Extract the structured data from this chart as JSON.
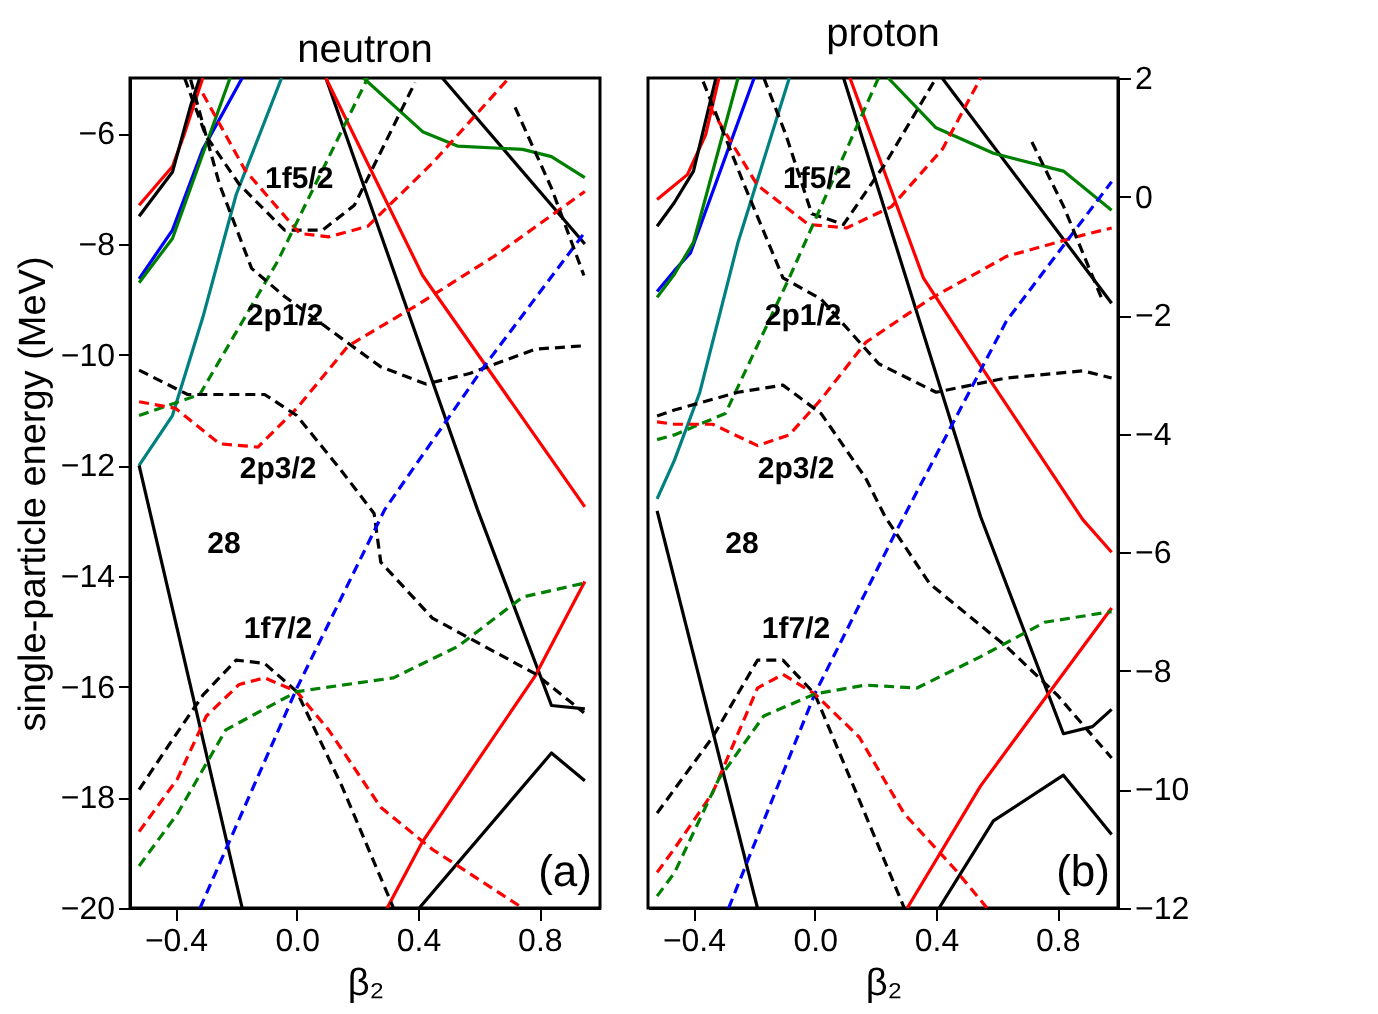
{
  "chart_data": [
    {
      "type": "line",
      "title": "neutron",
      "xlabel": "β₂",
      "ylabel": "single-particle energy (MeV)",
      "xlim": [
        -0.55,
        1.0
      ],
      "ylim": [
        -20,
        -5
      ],
      "xticks": [
        -0.4,
        {
          "value": 0,
          "label": "0.0"
        },
        0.4,
        0.8
      ],
      "yticks": [
        -20,
        -18,
        -16,
        -14,
        -12,
        -10,
        -8,
        -6
      ],
      "grid": false,
      "legend": false,
      "annotations": [
        "1f5/2",
        "2p1/2",
        "2p3/2",
        "1f7/2",
        "28",
        "(a)"
      ],
      "series": [
        {
          "color": "#ff0000",
          "line_style": "solid",
          "x": [
            -0.52,
            -0.41,
            -0.37,
            -0.31
          ],
          "values": [
            -7.3,
            -6.6,
            -6.0,
            -5.0
          ]
        },
        {
          "color": "#000000",
          "line_style": "solid",
          "x": [
            -0.52,
            -0.41,
            -0.35,
            -0.32
          ],
          "values": [
            -7.5,
            -6.7,
            -5.5,
            -5.0
          ]
        },
        {
          "color": "#0000ff",
          "line_style": "solid",
          "x": [
            -0.52,
            -0.41,
            -0.31,
            -0.18
          ],
          "values": [
            -8.63,
            -7.75,
            -6.29,
            -5.0
          ]
        },
        {
          "color": "#008000",
          "line_style": "solid",
          "x": [
            -0.52,
            -0.41,
            -0.22
          ],
          "values": [
            -8.7,
            -7.9,
            -5.0
          ]
        },
        {
          "color": "#008080",
          "line_style": "solid",
          "x": [
            -0.52,
            -0.41,
            -0.31,
            -0.2,
            -0.05
          ],
          "values": [
            -12.0,
            -11.1,
            -9.33,
            -7.11,
            -5.0
          ]
        },
        {
          "color": "#000000",
          "line_style": "solid",
          "x": [
            0.096,
            0.596,
            0.84,
            0.95
          ],
          "values": [
            -5.0,
            -12.8,
            -16.34,
            -16.4
          ]
        },
        {
          "color": "#000000",
          "line_style": "solid",
          "x": [
            0.48,
            0.95
          ],
          "values": [
            -5.0,
            -8.0
          ]
        },
        {
          "color": "#ff0000",
          "line_style": "solid",
          "x": [
            0.096,
            0.415,
            0.95
          ],
          "values": [
            -5.0,
            -8.57,
            -12.75
          ]
        },
        {
          "color": "#008000",
          "line_style": "solid",
          "x": [
            0.22,
            0.415,
            0.53,
            0.745,
            0.84,
            0.95
          ],
          "values": [
            -5.0,
            -5.97,
            -6.23,
            -6.29,
            -6.42,
            -6.8
          ]
        },
        {
          "color": "#000000",
          "line_style": "solid",
          "x": [
            -0.52,
            -0.18
          ],
          "values": [
            -12.0,
            -20.0
          ]
        },
        {
          "color": "#ff0000",
          "line_style": "solid",
          "x": [
            0.298,
            0.415,
            0.787,
            0.95
          ],
          "values": [
            -20.0,
            -18.8,
            -15.8,
            -14.1
          ]
        },
        {
          "color": "#000000",
          "line_style": "solid",
          "x": [
            0.404,
            0.84,
            0.95
          ],
          "values": [
            -20.0,
            -17.2,
            -17.7
          ]
        },
        {
          "color": "#000000",
          "line_style": "dashed",
          "x": [
            -0.37,
            -0.3,
            -0.19,
            -0.04,
            0.085,
            0.19,
            0.39
          ],
          "values": [
            -5.0,
            -6.04,
            -6.92,
            -7.75,
            -7.75,
            -7.3,
            -5.08
          ]
        },
        {
          "color": "#ff0000",
          "line_style": "dashed",
          "x": [
            -0.31,
            -0.17,
            0.01,
            0.106,
            0.234,
            0.447,
            0.7
          ],
          "values": [
            -5.28,
            -6.67,
            -7.81,
            -7.87,
            -7.68,
            -6.54,
            -5.0
          ]
        },
        {
          "color": "#008000",
          "line_style": "dashed",
          "x": [
            -0.52,
            -0.32,
            -0.064,
            0.234
          ],
          "values": [
            -11.1,
            -10.72,
            -8.32,
            -5.0
          ]
        },
        {
          "color": "#000000",
          "line_style": "dashed",
          "x": [
            -0.35,
            -0.255,
            -0.149,
            -0.04,
            0.149,
            0.277,
            0.426,
            0.57,
            0.787,
            0.947
          ],
          "values": [
            -5.03,
            -6.92,
            -8.44,
            -8.95,
            -9.71,
            -10.22,
            -10.53,
            -10.34,
            -9.9,
            -9.84
          ]
        },
        {
          "color": "#ff0000",
          "line_style": "dashed",
          "x": [
            -0.52,
            -0.4,
            -0.255,
            -0.128,
            0.0,
            0.17,
            0.404,
            0.66,
            0.95
          ],
          "values": [
            -10.85,
            -10.97,
            -11.61,
            -11.67,
            -10.97,
            -9.84,
            -9.08,
            -8.19,
            -7.05
          ]
        },
        {
          "color": "#000000",
          "line_style": "dashed",
          "x": [
            -0.52,
            -0.36,
            -0.106,
            0.0,
            0.149,
            0.255,
            0.277,
            0.447,
            0.787,
            0.947
          ],
          "values": [
            -10.28,
            -10.72,
            -10.72,
            -11.1,
            -12.11,
            -12.87,
            -13.75,
            -14.76,
            -15.77,
            -16.47
          ]
        },
        {
          "color": "#0000ff",
          "line_style": "dashed",
          "x": [
            -0.319,
            0.0,
            0.29,
            0.617,
            0.947
          ],
          "values": [
            -20.0,
            -16.03,
            -12.8,
            -10.22,
            -7.81
          ]
        },
        {
          "color": "#000000",
          "line_style": "dashed",
          "x": [
            0.72,
            0.84,
            0.947
          ],
          "values": [
            -5.53,
            -6.99,
            -8.57
          ]
        },
        {
          "color": "#000000",
          "line_style": "dashed",
          "x": [
            -0.52,
            -0.404,
            -0.309,
            -0.2,
            -0.106,
            0.0,
            0.149,
            0.319
          ],
          "values": [
            -17.86,
            -16.91,
            -16.15,
            -15.52,
            -15.58,
            -16.09,
            -17.8,
            -20.0
          ]
        },
        {
          "color": "#ff0000",
          "line_style": "dashed",
          "x": [
            -0.52,
            -0.394,
            -0.298,
            -0.19,
            -0.106,
            0.0,
            0.106,
            0.277,
            0.447,
            0.745
          ],
          "values": [
            -18.62,
            -17.67,
            -16.53,
            -15.96,
            -15.84,
            -16.09,
            -16.79,
            -18.18,
            -18.94,
            -20.0
          ]
        },
        {
          "color": "#008000",
          "line_style": "dashed",
          "x": [
            -0.52,
            -0.394,
            -0.234,
            0.0,
            0.319,
            0.532,
            0.745,
            0.947
          ],
          "values": [
            -19.24,
            -18.3,
            -16.78,
            -16.09,
            -15.84,
            -15.27,
            -14.38,
            -14.13
          ]
        }
      ]
    },
    {
      "type": "line",
      "title": "proton",
      "xlabel": "β₂",
      "xlim": [
        -0.55,
        1.0
      ],
      "ylim": [
        -12,
        2
      ],
      "xticks": [
        -0.4,
        {
          "value": 0,
          "label": "0.0"
        },
        0.4,
        0.8
      ],
      "yticks": [
        -12,
        -10,
        -8,
        -6,
        -4,
        -2,
        0,
        2
      ],
      "grid": false,
      "legend": false,
      "annotations": [
        "1f5/2",
        "2p1/2",
        "2p3/2",
        "1f7/2",
        "28",
        "(b)"
      ],
      "series": [
        {
          "color": "#ff0000",
          "line_style": "solid",
          "x": [
            -0.52,
            -0.42,
            -0.36,
            -0.316
          ],
          "values": [
            -0.05,
            0.37,
            1.04,
            2.0
          ]
        },
        {
          "color": "#000000",
          "line_style": "solid",
          "x": [
            -0.52,
            -0.463,
            -0.4,
            -0.326
          ],
          "values": [
            -0.5,
            -0.1,
            0.43,
            2.0
          ]
        },
        {
          "color": "#0000ff",
          "line_style": "solid",
          "x": [
            -0.52,
            -0.463,
            -0.41,
            -0.2
          ],
          "values": [
            -1.6,
            -1.25,
            -0.95,
            2.0
          ]
        },
        {
          "color": "#008000",
          "line_style": "solid",
          "x": [
            -0.52,
            -0.463,
            -0.4,
            -0.253
          ],
          "values": [
            -1.7,
            -1.31,
            -0.77,
            2.0
          ]
        },
        {
          "color": "#008080",
          "line_style": "solid",
          "x": [
            -0.52,
            -0.463,
            -0.379,
            -0.253,
            -0.084
          ],
          "values": [
            -5.1,
            -4.45,
            -3.3,
            -0.77,
            2.0
          ]
        },
        {
          "color": "#000000",
          "line_style": "solid",
          "x": [
            0.095,
            0.547,
            0.82,
            0.916,
            0.979
          ],
          "values": [
            2.0,
            -5.4,
            -9.06,
            -8.94,
            -8.65
          ]
        },
        {
          "color": "#000000",
          "line_style": "solid",
          "x": [
            0.42,
            0.979
          ],
          "values": [
            2.0,
            -1.8
          ]
        },
        {
          "color": "#ff0000",
          "line_style": "solid",
          "x": [
            0.116,
            0.358,
            0.589,
            0.884,
            0.979
          ],
          "values": [
            2.0,
            -1.37,
            -3.18,
            -5.45,
            -6.0
          ]
        },
        {
          "color": "#008000",
          "line_style": "solid",
          "x": [
            0.242,
            0.4,
            0.589,
            0.82,
            0.979
          ],
          "values": [
            2.0,
            1.16,
            0.73,
            0.43,
            -0.23
          ]
        },
        {
          "color": "#000000",
          "line_style": "solid",
          "x": [
            -0.52,
            -0.189
          ],
          "values": [
            -5.3,
            -12.0
          ]
        },
        {
          "color": "#ff0000",
          "line_style": "solid",
          "x": [
            0.305,
            0.547,
            0.8,
            0.979
          ],
          "values": [
            -12.0,
            -9.94,
            -8.18,
            -6.94
          ]
        },
        {
          "color": "#000000",
          "line_style": "solid",
          "x": [
            0.41,
            0.589,
            0.82,
            0.979
          ],
          "values": [
            -12.0,
            -10.53,
            -9.76,
            -10.76
          ]
        },
        {
          "color": "#000000",
          "line_style": "dashed",
          "x": [
            -0.168,
            -0.095,
            -0.01,
            0.095,
            0.232,
            0.4
          ],
          "values": [
            2.0,
            1.04,
            -0.29,
            -0.47,
            0.55,
            2.0
          ]
        },
        {
          "color": "#ff0000",
          "line_style": "dashed",
          "x": [
            -0.347,
            -0.189,
            -0.021,
            0.105,
            0.253,
            0.421,
            0.547
          ],
          "values": [
            1.52,
            0.19,
            -0.47,
            -0.53,
            -0.17,
            0.8,
            2.0
          ]
        },
        {
          "color": "#008000",
          "line_style": "dashed",
          "x": [
            -0.52,
            -0.463,
            -0.295,
            -0.084,
            0.21
          ],
          "values": [
            -4.1,
            -4.02,
            -3.66,
            -1.37,
            2.0
          ]
        },
        {
          "color": "#000000",
          "line_style": "dashed",
          "x": [
            -0.368,
            -0.232,
            -0.105,
            0.021,
            0.211,
            0.4,
            0.632,
            0.884,
            0.979
          ],
          "values": [
            1.94,
            0.19,
            -1.37,
            -1.73,
            -2.82,
            -3.3,
            -3.06,
            -2.94,
            -3.06
          ]
        },
        {
          "color": "#ff0000",
          "line_style": "dashed",
          "x": [
            -0.52,
            -0.463,
            -0.337,
            -0.189,
            -0.084,
            0.021,
            0.168,
            0.379,
            0.632,
            0.884,
            0.979
          ],
          "values": [
            -3.8,
            -3.84,
            -3.84,
            -4.2,
            -4.02,
            -3.42,
            -2.46,
            -1.73,
            -1.01,
            -0.65,
            -0.53
          ]
        },
        {
          "color": "#000000",
          "line_style": "dashed",
          "x": [
            -0.52,
            -0.463,
            -0.253,
            -0.105,
            0.021,
            0.168,
            0.232,
            0.379,
            0.632,
            0.8,
            0.979
          ],
          "values": [
            -3.7,
            -3.6,
            -3.3,
            -3.18,
            -3.66,
            -4.75,
            -5.4,
            -6.53,
            -7.59,
            -8.41,
            -9.47
          ]
        },
        {
          "color": "#0000ff",
          "line_style": "dashed",
          "x": [
            -0.284,
            0.0,
            0.263,
            0.632,
            0.979
          ],
          "values": [
            -12.0,
            -8.39,
            -5.7,
            -2.1,
            0.25
          ]
        },
        {
          "color": "#000000",
          "line_style": "dashed",
          "x": [
            0.716,
            0.821,
            0.947
          ],
          "values": [
            0.92,
            -0.17,
            -1.73
          ]
        },
        {
          "color": "#000000",
          "line_style": "dashed",
          "x": [
            -0.52,
            -0.463,
            -0.337,
            -0.189,
            -0.105,
            0.0,
            0.147,
            0.295
          ],
          "values": [
            -10.4,
            -10.0,
            -9.12,
            -7.82,
            -7.82,
            -8.39,
            -10.18,
            -12.0
          ]
        },
        {
          "color": "#ff0000",
          "line_style": "dashed",
          "x": [
            -0.52,
            -0.463,
            -0.337,
            -0.189,
            -0.105,
            0.0,
            0.147,
            0.295,
            0.463,
            0.568
          ],
          "values": [
            -11.4,
            -11.0,
            -10.06,
            -8.29,
            -8.06,
            -8.39,
            -9.12,
            -10.41,
            -11.35,
            -12.0
          ]
        },
        {
          "color": "#008000",
          "line_style": "dashed",
          "x": [
            -0.52,
            -0.463,
            -0.316,
            -0.168,
            0.0,
            0.168,
            0.337,
            0.547,
            0.758,
            0.979
          ],
          "values": [
            -11.8,
            -11.41,
            -9.82,
            -8.76,
            -8.39,
            -8.24,
            -8.29,
            -7.76,
            -7.18,
            -7.0
          ]
        }
      ]
    }
  ]
}
